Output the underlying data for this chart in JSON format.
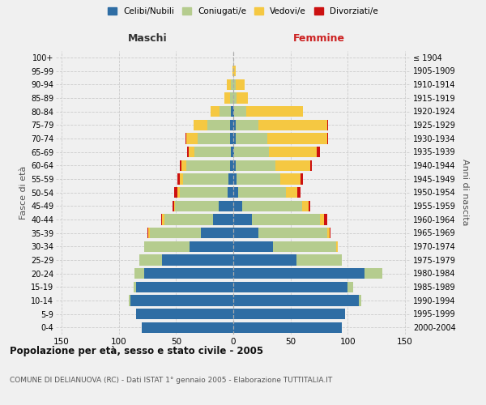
{
  "age_groups": [
    "0-4",
    "5-9",
    "10-14",
    "15-19",
    "20-24",
    "25-29",
    "30-34",
    "35-39",
    "40-44",
    "45-49",
    "50-54",
    "55-59",
    "60-64",
    "65-69",
    "70-74",
    "75-79",
    "80-84",
    "85-89",
    "90-94",
    "95-99",
    "100+"
  ],
  "birth_years": [
    "2000-2004",
    "1995-1999",
    "1990-1994",
    "1985-1989",
    "1980-1984",
    "1975-1979",
    "1970-1974",
    "1965-1969",
    "1960-1964",
    "1955-1959",
    "1950-1954",
    "1945-1949",
    "1940-1944",
    "1935-1939",
    "1930-1934",
    "1925-1929",
    "1920-1924",
    "1915-1919",
    "1910-1914",
    "1905-1909",
    "≤ 1904"
  ],
  "maschi": {
    "celibi": [
      80,
      85,
      90,
      85,
      78,
      62,
      38,
      28,
      18,
      13,
      5,
      4,
      3,
      2,
      3,
      3,
      2,
      0,
      0,
      0,
      0
    ],
    "coniugati": [
      0,
      0,
      1,
      2,
      8,
      20,
      40,
      45,
      42,
      38,
      42,
      40,
      38,
      32,
      28,
      20,
      10,
      3,
      2,
      0,
      0
    ],
    "vedovi": [
      0,
      0,
      0,
      0,
      0,
      0,
      0,
      1,
      2,
      1,
      2,
      3,
      4,
      5,
      10,
      12,
      8,
      5,
      4,
      1,
      0
    ],
    "divorziati": [
      0,
      0,
      0,
      0,
      0,
      0,
      0,
      1,
      1,
      1,
      3,
      2,
      2,
      1,
      1,
      0,
      0,
      0,
      0,
      0,
      0
    ]
  },
  "femmine": {
    "nubili": [
      95,
      98,
      110,
      100,
      115,
      55,
      35,
      22,
      16,
      8,
      4,
      3,
      2,
      1,
      2,
      2,
      1,
      0,
      0,
      0,
      0
    ],
    "coniugate": [
      0,
      0,
      2,
      5,
      15,
      40,
      55,
      60,
      60,
      52,
      42,
      38,
      35,
      30,
      28,
      20,
      10,
      3,
      2,
      0,
      0
    ],
    "vedove": [
      0,
      0,
      0,
      0,
      0,
      0,
      1,
      2,
      3,
      6,
      10,
      18,
      30,
      42,
      52,
      60,
      50,
      10,
      8,
      2,
      0
    ],
    "divorziate": [
      0,
      0,
      0,
      0,
      0,
      0,
      0,
      1,
      3,
      1,
      3,
      2,
      2,
      3,
      1,
      1,
      0,
      0,
      0,
      0,
      0
    ]
  },
  "colors": {
    "celibi": "#2e6da4",
    "coniugati": "#b5cc8e",
    "vedovi": "#f5c842",
    "divorziati": "#cc1111"
  },
  "xlim": 155,
  "title": "Popolazione per età, sesso e stato civile - 2005",
  "subtitle": "COMUNE DI DELIANUOVA (RC) - Dati ISTAT 1° gennaio 2005 - Elaborazione TUTTITALIA.IT",
  "ylabel_left": "Fasce di età",
  "ylabel_right": "Anni di nascita",
  "xlabel_left": "Maschi",
  "xlabel_right": "Femmine",
  "bg_color": "#f0f0f0",
  "grid_color": "#cccccc"
}
